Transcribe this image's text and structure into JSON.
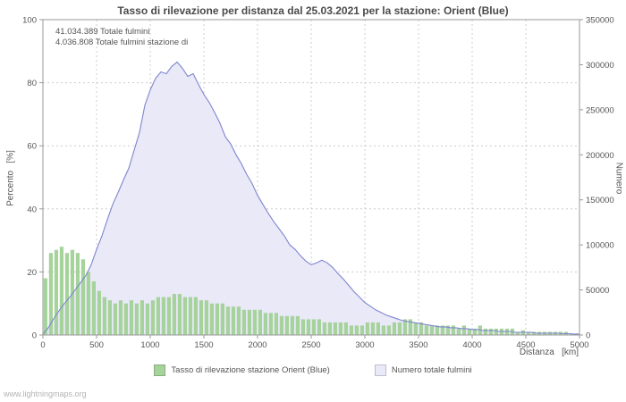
{
  "page": {
    "watermark": "www.lightningmaps.org"
  },
  "chart_data": {
    "type": "area",
    "title": "Tasso di rilevazione per distanza dal 25.03.2021 per la stazione: Orient (Blue)",
    "date": "25.03.2021",
    "station": "Orient (Blue)",
    "annotations": [
      "41.034.389 Totale fulmini",
      "4.036.808 Totale fulmini stazione di"
    ],
    "xlabel": "Distanza   [km]",
    "ylabel_left": "Percento   [%]",
    "ylabel_right": "Numero",
    "xlim": [
      0,
      5000
    ],
    "ylim_left": [
      0,
      100
    ],
    "ylim_right": [
      0,
      350000
    ],
    "x_ticks": [
      0,
      500,
      1000,
      1500,
      2000,
      2500,
      3000,
      3500,
      4000,
      4500,
      5000
    ],
    "y_left_ticks": [
      0,
      20,
      40,
      60,
      80,
      100
    ],
    "y_right_ticks": [
      0,
      50000,
      100000,
      150000,
      200000,
      250000,
      300000,
      350000
    ],
    "grid": true,
    "legend_position": "bottom-center",
    "x_start": 0,
    "x_step": 50,
    "colors": {
      "grid": "#cccccc",
      "axis": "#999999",
      "text": "#555555"
    },
    "series": [
      {
        "name": "Tasso di rilevazione stazione Orient (Blue)",
        "type": "bar",
        "axis": "left",
        "unit": "%",
        "color": "#a6d39b",
        "values": [
          18,
          26,
          27,
          28,
          26,
          27,
          26,
          24,
          20,
          17,
          14,
          12,
          11,
          10,
          11,
          10,
          11,
          10,
          11,
          10,
          11,
          12,
          12,
          12,
          13,
          13,
          12,
          12,
          12,
          11,
          11,
          10,
          10,
          10,
          9,
          9,
          9,
          8,
          8,
          8,
          8,
          7,
          7,
          7,
          6,
          6,
          6,
          6,
          5,
          5,
          5,
          5,
          4,
          4,
          4,
          4,
          4,
          3,
          3,
          3,
          4,
          4,
          4,
          3,
          3,
          4,
          4,
          5,
          5,
          4,
          4,
          3,
          3,
          3,
          3,
          3,
          3,
          2,
          3,
          2,
          2,
          3,
          2,
          2,
          2,
          2,
          2,
          2,
          1,
          1.5,
          1,
          1,
          1,
          1,
          1,
          1,
          1,
          1,
          0.5,
          0.5,
          0.5
        ]
      },
      {
        "name": "Numero totale fulmini",
        "type": "area",
        "axis": "right",
        "unit": "count",
        "fill": "#e9e9f8",
        "line_color": "#7f86cf",
        "values": [
          1000,
          8000,
          18000,
          27000,
          35000,
          42000,
          50000,
          58000,
          66000,
          78000,
          95000,
          110000,
          128000,
          145000,
          158000,
          172000,
          185000,
          205000,
          225000,
          255000,
          272000,
          285000,
          292000,
          290000,
          298000,
          303000,
          296000,
          287000,
          290000,
          278000,
          267000,
          258000,
          247000,
          235000,
          220000,
          212000,
          200000,
          190000,
          178000,
          168000,
          155000,
          145000,
          135000,
          126000,
          118000,
          110000,
          100000,
          95000,
          88000,
          82000,
          78000,
          80000,
          83000,
          80000,
          75000,
          68000,
          62000,
          55000,
          48000,
          42000,
          36000,
          32000,
          28000,
          25000,
          22000,
          20000,
          18000,
          16000,
          15000,
          14000,
          13000,
          12000,
          11000,
          10000,
          9000,
          9000,
          8000,
          8000,
          7000,
          7000,
          6000,
          6000,
          5000,
          5000,
          5000,
          4000,
          4000,
          4000,
          3000,
          3000,
          3000,
          3000,
          2000,
          2000,
          2000,
          2000,
          2000,
          1500,
          1500,
          1000,
          1000
        ]
      }
    ]
  }
}
